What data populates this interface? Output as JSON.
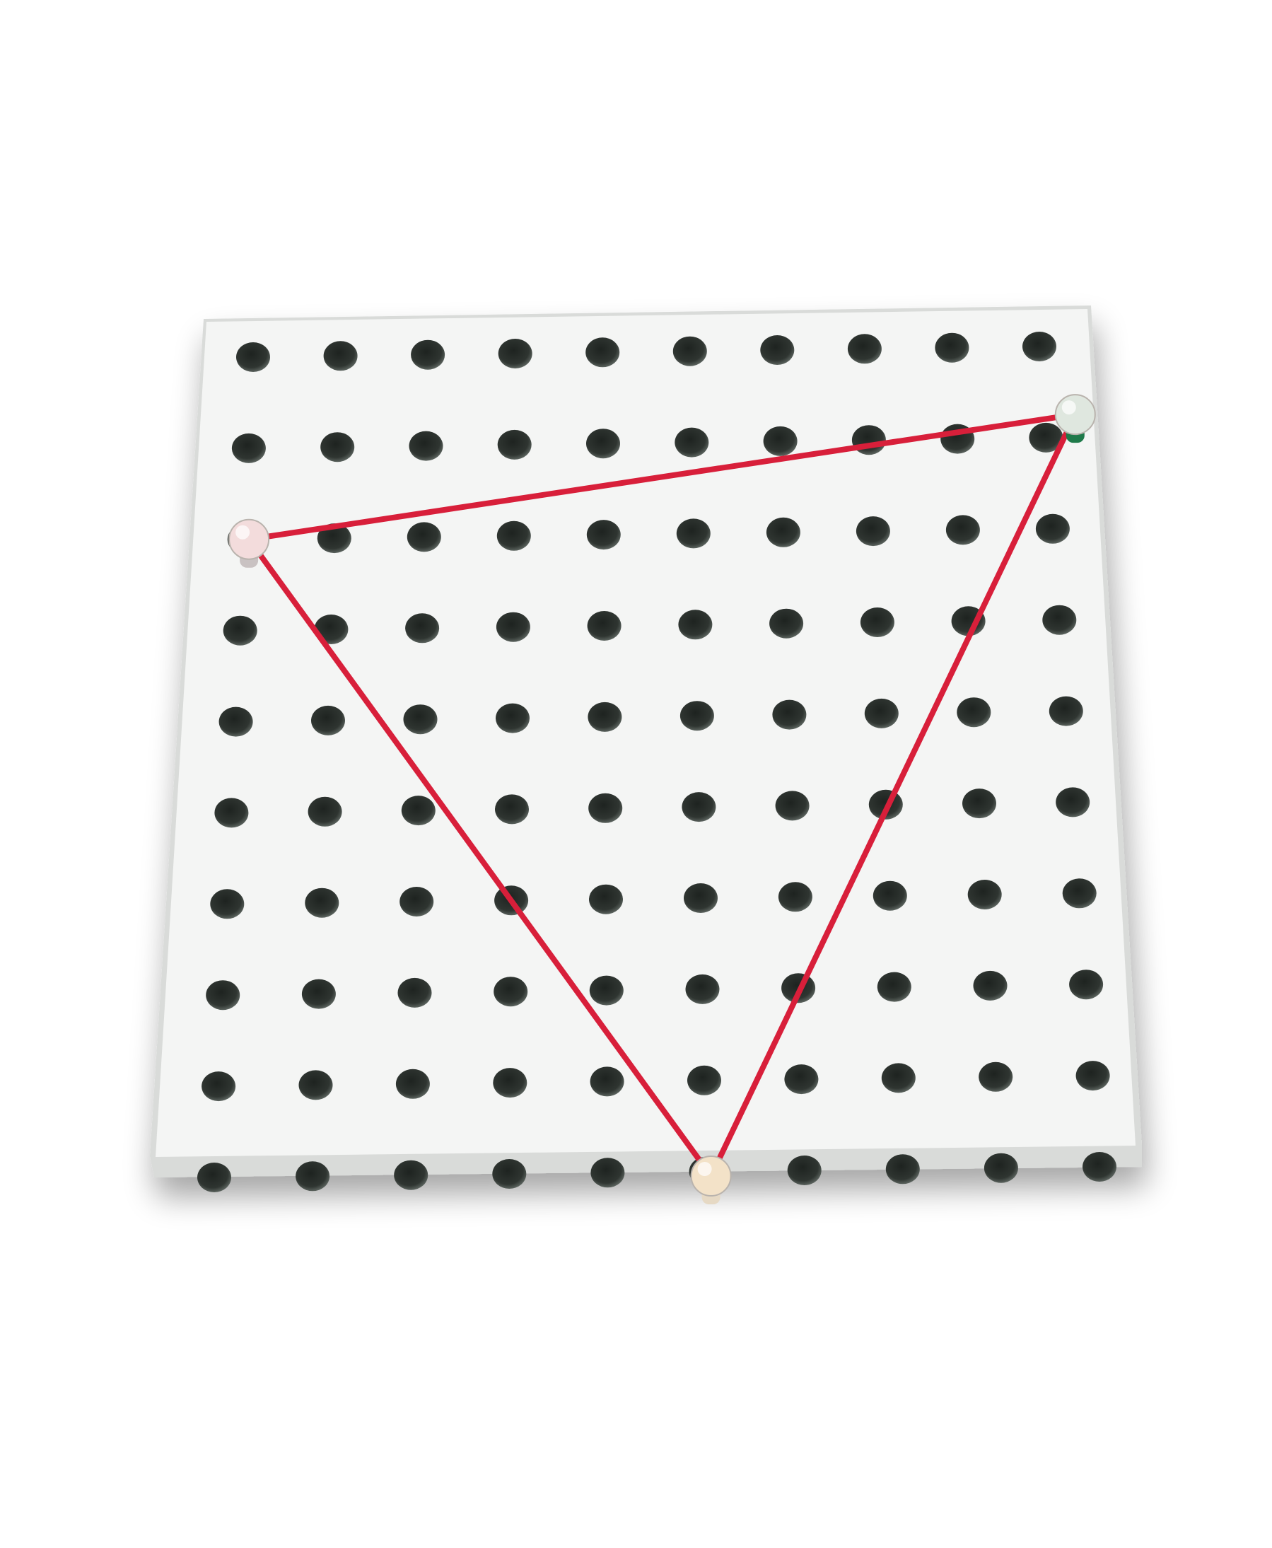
{
  "photo": {
    "subject": "geoboard-with-rubber-band-triangle",
    "background_color": "#ffffff",
    "board_color": "#f4f5f4",
    "board_edge_color": "#d9dbd9",
    "hole_color": "#2b302d",
    "band_color": "#d81f3a",
    "grid": {
      "rows": 10,
      "cols": 10
    },
    "pegs": [
      {
        "name": "top-left-peg",
        "row": 2,
        "col": 0.05,
        "head_color": "#f3dcdc",
        "stem_color": "#c9c2c2"
      },
      {
        "name": "top-right-peg",
        "row": 0.75,
        "col": 9.35,
        "head_color": "#dfe7df",
        "stem_color": "#1f7a4a"
      },
      {
        "name": "bottom-peg",
        "row": 9.05,
        "col": 5.05,
        "head_color": "#f3e2c8",
        "stem_color": "#e6d9c4"
      }
    ]
  }
}
